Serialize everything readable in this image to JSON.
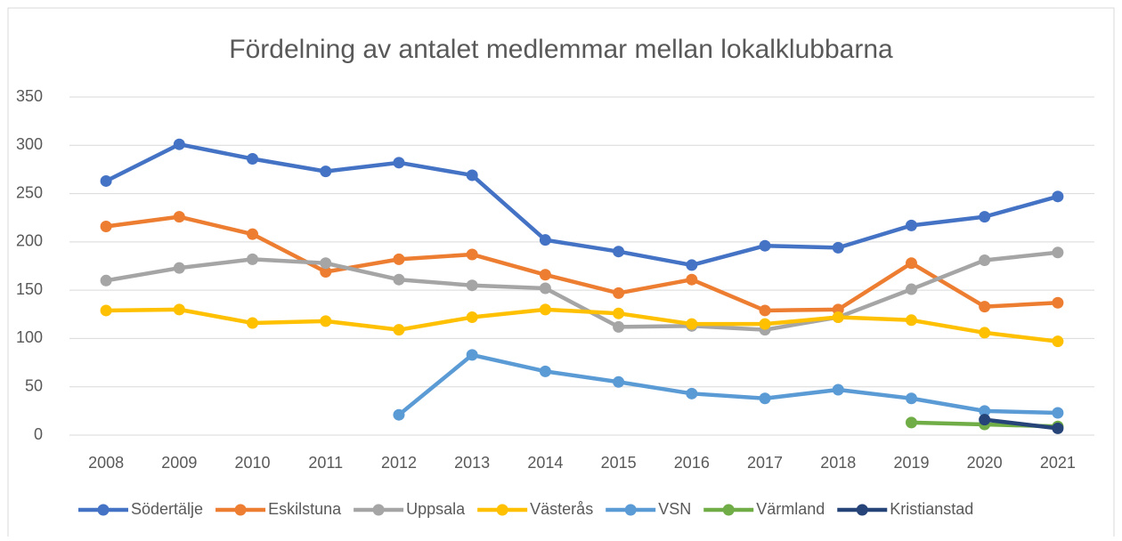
{
  "chart_data": {
    "type": "line",
    "title": "Fördelning av antalet medlemmar mellan lokalklubbarna",
    "categories": [
      "2008",
      "2009",
      "2010",
      "2011",
      "2012",
      "2013",
      "2014",
      "2015",
      "2016",
      "2017",
      "2018",
      "2019",
      "2020",
      "2021"
    ],
    "series": [
      {
        "name": "Södertälje",
        "color": "#4472c4",
        "values": [
          263,
          301,
          286,
          273,
          282,
          269,
          202,
          190,
          176,
          196,
          194,
          217,
          226,
          247
        ]
      },
      {
        "name": "Eskilstuna",
        "color": "#ed7d31",
        "values": [
          216,
          226,
          208,
          169,
          182,
          187,
          166,
          147,
          161,
          129,
          130,
          178,
          133,
          137
        ]
      },
      {
        "name": "Uppsala",
        "color": "#a5a5a5",
        "values": [
          160,
          173,
          182,
          178,
          161,
          155,
          152,
          112,
          113,
          109,
          122,
          151,
          181,
          189
        ]
      },
      {
        "name": "Västerås",
        "color": "#ffc000",
        "values": [
          129,
          130,
          116,
          118,
          109,
          122,
          130,
          126,
          115,
          115,
          122,
          119,
          106,
          97
        ]
      },
      {
        "name": "VSN",
        "color": "#5b9bd5",
        "values": [
          null,
          null,
          null,
          null,
          21,
          83,
          66,
          55,
          43,
          38,
          47,
          38,
          25,
          23
        ]
      },
      {
        "name": "Värmland",
        "color": "#70ad47",
        "values": [
          null,
          null,
          null,
          null,
          null,
          null,
          null,
          null,
          null,
          null,
          null,
          13,
          11,
          9
        ]
      },
      {
        "name": "Kristianstad",
        "color": "#264478",
        "values": [
          null,
          null,
          null,
          null,
          null,
          null,
          null,
          null,
          null,
          null,
          null,
          null,
          16,
          7
        ]
      }
    ],
    "ylim": [
      0,
      350
    ],
    "yticks": [
      0,
      50,
      100,
      150,
      200,
      250,
      300,
      350
    ],
    "grid": true,
    "legend": "bottom"
  }
}
